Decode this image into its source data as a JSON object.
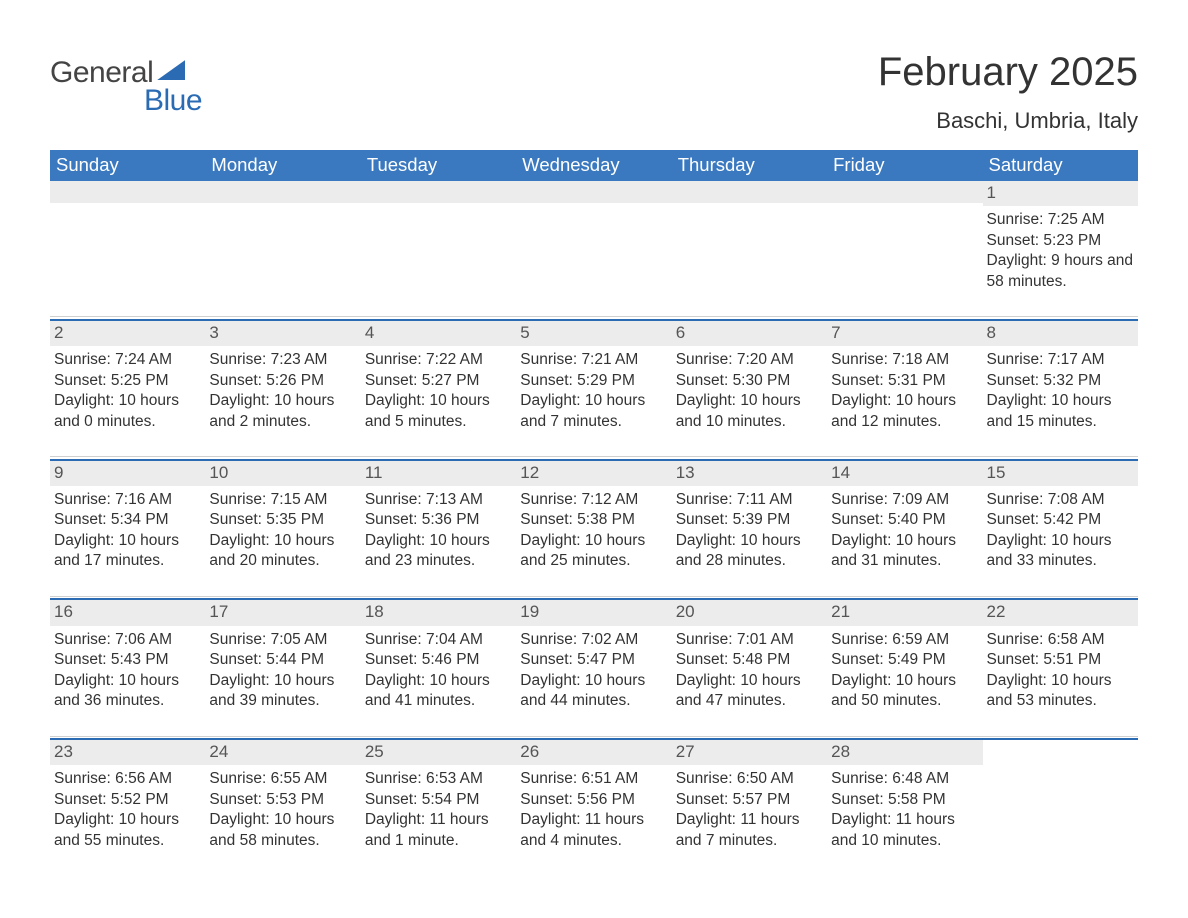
{
  "logo": {
    "text1": "General",
    "text2": "Blue"
  },
  "title": "February 2025",
  "location": "Baschi, Umbria, Italy",
  "colors": {
    "header_bg": "#3a79bf",
    "header_text": "#ffffff",
    "accent": "#2a6bb3",
    "daynum_bg": "#ececec",
    "text": "#333333",
    "divider": "#d0d0d0",
    "page_bg": "#ffffff"
  },
  "weekdays": [
    "Sunday",
    "Monday",
    "Tuesday",
    "Wednesday",
    "Thursday",
    "Friday",
    "Saturday"
  ],
  "labels": {
    "sunrise": "Sunrise: ",
    "sunset": "Sunset: ",
    "daylight": "Daylight: "
  },
  "weeks": [
    [
      null,
      null,
      null,
      null,
      null,
      null,
      {
        "n": "1",
        "sunrise": "7:25 AM",
        "sunset": "5:23 PM",
        "daylight": "9 hours and 58 minutes."
      }
    ],
    [
      {
        "n": "2",
        "sunrise": "7:24 AM",
        "sunset": "5:25 PM",
        "daylight": "10 hours and 0 minutes."
      },
      {
        "n": "3",
        "sunrise": "7:23 AM",
        "sunset": "5:26 PM",
        "daylight": "10 hours and 2 minutes."
      },
      {
        "n": "4",
        "sunrise": "7:22 AM",
        "sunset": "5:27 PM",
        "daylight": "10 hours and 5 minutes."
      },
      {
        "n": "5",
        "sunrise": "7:21 AM",
        "sunset": "5:29 PM",
        "daylight": "10 hours and 7 minutes."
      },
      {
        "n": "6",
        "sunrise": "7:20 AM",
        "sunset": "5:30 PM",
        "daylight": "10 hours and 10 minutes."
      },
      {
        "n": "7",
        "sunrise": "7:18 AM",
        "sunset": "5:31 PM",
        "daylight": "10 hours and 12 minutes."
      },
      {
        "n": "8",
        "sunrise": "7:17 AM",
        "sunset": "5:32 PM",
        "daylight": "10 hours and 15 minutes."
      }
    ],
    [
      {
        "n": "9",
        "sunrise": "7:16 AM",
        "sunset": "5:34 PM",
        "daylight": "10 hours and 17 minutes."
      },
      {
        "n": "10",
        "sunrise": "7:15 AM",
        "sunset": "5:35 PM",
        "daylight": "10 hours and 20 minutes."
      },
      {
        "n": "11",
        "sunrise": "7:13 AM",
        "sunset": "5:36 PM",
        "daylight": "10 hours and 23 minutes."
      },
      {
        "n": "12",
        "sunrise": "7:12 AM",
        "sunset": "5:38 PM",
        "daylight": "10 hours and 25 minutes."
      },
      {
        "n": "13",
        "sunrise": "7:11 AM",
        "sunset": "5:39 PM",
        "daylight": "10 hours and 28 minutes."
      },
      {
        "n": "14",
        "sunrise": "7:09 AM",
        "sunset": "5:40 PM",
        "daylight": "10 hours and 31 minutes."
      },
      {
        "n": "15",
        "sunrise": "7:08 AM",
        "sunset": "5:42 PM",
        "daylight": "10 hours and 33 minutes."
      }
    ],
    [
      {
        "n": "16",
        "sunrise": "7:06 AM",
        "sunset": "5:43 PM",
        "daylight": "10 hours and 36 minutes."
      },
      {
        "n": "17",
        "sunrise": "7:05 AM",
        "sunset": "5:44 PM",
        "daylight": "10 hours and 39 minutes."
      },
      {
        "n": "18",
        "sunrise": "7:04 AM",
        "sunset": "5:46 PM",
        "daylight": "10 hours and 41 minutes."
      },
      {
        "n": "19",
        "sunrise": "7:02 AM",
        "sunset": "5:47 PM",
        "daylight": "10 hours and 44 minutes."
      },
      {
        "n": "20",
        "sunrise": "7:01 AM",
        "sunset": "5:48 PM",
        "daylight": "10 hours and 47 minutes."
      },
      {
        "n": "21",
        "sunrise": "6:59 AM",
        "sunset": "5:49 PM",
        "daylight": "10 hours and 50 minutes."
      },
      {
        "n": "22",
        "sunrise": "6:58 AM",
        "sunset": "5:51 PM",
        "daylight": "10 hours and 53 minutes."
      }
    ],
    [
      {
        "n": "23",
        "sunrise": "6:56 AM",
        "sunset": "5:52 PM",
        "daylight": "10 hours and 55 minutes."
      },
      {
        "n": "24",
        "sunrise": "6:55 AM",
        "sunset": "5:53 PM",
        "daylight": "10 hours and 58 minutes."
      },
      {
        "n": "25",
        "sunrise": "6:53 AM",
        "sunset": "5:54 PM",
        "daylight": "11 hours and 1 minute."
      },
      {
        "n": "26",
        "sunrise": "6:51 AM",
        "sunset": "5:56 PM",
        "daylight": "11 hours and 4 minutes."
      },
      {
        "n": "27",
        "sunrise": "6:50 AM",
        "sunset": "5:57 PM",
        "daylight": "11 hours and 7 minutes."
      },
      {
        "n": "28",
        "sunrise": "6:48 AM",
        "sunset": "5:58 PM",
        "daylight": "11 hours and 10 minutes."
      },
      null
    ]
  ]
}
